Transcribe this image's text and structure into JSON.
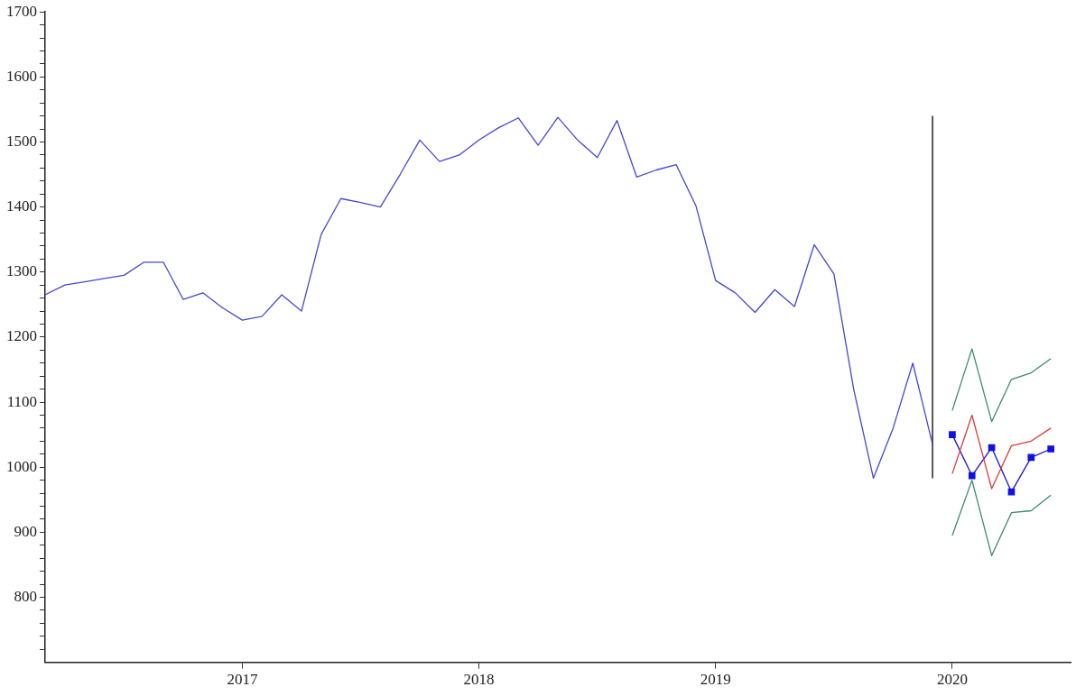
{
  "chart_data": {
    "type": "line",
    "xlim": [
      "2016-03",
      "2020-07"
    ],
    "xticks": [
      "2017",
      "2018",
      "2019",
      "2020"
    ],
    "ylim": [
      700,
      1700
    ],
    "yticks": [
      {
        "value": 720,
        "label": null
      },
      {
        "value": 740,
        "label": null
      },
      {
        "value": 760,
        "label": null
      },
      {
        "value": 780,
        "label": null
      },
      800,
      {
        "value": 820,
        "label": null
      },
      {
        "value": 840,
        "label": null
      },
      {
        "value": 860,
        "label": null
      },
      {
        "value": 880,
        "label": null
      },
      900,
      {
        "value": 920,
        "label": null
      },
      {
        "value": 940,
        "label": null
      },
      {
        "value": 960,
        "label": null
      },
      {
        "value": 980,
        "label": null
      },
      1000,
      {
        "value": 1020,
        "label": null
      },
      {
        "value": 1040,
        "label": null
      },
      {
        "value": 1060,
        "label": null
      },
      {
        "value": 1080,
        "label": null
      },
      1100,
      {
        "value": 1120,
        "label": null
      },
      {
        "value": 1140,
        "label": null
      },
      {
        "value": 1160,
        "label": null
      },
      {
        "value": 1180,
        "label": null
      },
      1200,
      {
        "value": 1220,
        "label": null
      },
      {
        "value": 1240,
        "label": null
      },
      {
        "value": 1260,
        "label": null
      },
      {
        "value": 1280,
        "label": null
      },
      1300,
      {
        "value": 1320,
        "label": null
      },
      {
        "value": 1340,
        "label": null
      },
      {
        "value": 1360,
        "label": null
      },
      {
        "value": 1380,
        "label": null
      },
      1400,
      {
        "value": 1420,
        "label": null
      },
      {
        "value": 1440,
        "label": null
      },
      {
        "value": 1460,
        "label": null
      },
      {
        "value": 1480,
        "label": null
      },
      1500,
      {
        "value": 1520,
        "label": null
      },
      {
        "value": 1540,
        "label": null
      },
      {
        "value": 1560,
        "label": null
      },
      {
        "value": 1580,
        "label": null
      },
      1600,
      {
        "value": 1620,
        "label": null
      },
      {
        "value": 1640,
        "label": null
      },
      {
        "value": 1660,
        "label": null
      },
      {
        "value": 1680,
        "label": null
      },
      1700
    ],
    "grid": false,
    "legend": false,
    "line_style": "solid",
    "series": [
      {
        "color": "#4646d8",
        "marker": "none",
        "x": [
          "2016-03",
          "2016-04",
          "2016-05",
          "2016-06",
          "2016-07",
          "2016-08",
          "2016-09",
          "2016-10",
          "2016-11",
          "2016-12",
          "2017-01",
          "2017-02",
          "2017-03",
          "2017-04",
          "2017-05",
          "2017-06",
          "2017-07",
          "2017-08",
          "2017-09",
          "2017-10",
          "2017-11",
          "2017-12",
          "2018-01",
          "2018-02",
          "2018-03",
          "2018-04",
          "2018-05",
          "2018-06",
          "2018-07",
          "2018-08",
          "2018-09",
          "2018-10",
          "2018-11",
          "2018-12",
          "2019-01",
          "2019-02",
          "2019-03",
          "2019-04",
          "2019-05",
          "2019-06",
          "2019-07",
          "2019-08",
          "2019-09",
          "2019-10",
          "2019-11",
          "2019-12"
        ],
        "values": [
          1265,
          1280,
          1285,
          1290,
          1295,
          1315,
          1315,
          1258,
          1268,
          1245,
          1226,
          1232,
          1265,
          1240,
          1358,
          1413,
          1407,
          1400,
          1450,
          1503,
          1470,
          1480,
          1503,
          1522,
          1537,
          1495,
          1538,
          1503,
          1476,
          1533,
          1446,
          1457,
          1465,
          1402,
          1287,
          1268,
          1238,
          1273,
          1247,
          1342,
          1297,
          1120,
          983,
          1060,
          1160,
          1035
        ]
      },
      {
        "color": "#000000",
        "marker": "none",
        "x": [
          "2019-12",
          "2019-12"
        ],
        "values": [
          983,
          1540
        ]
      },
      {
        "color": "#3a8a70",
        "marker": "none",
        "x": [
          "2020-01",
          "2020-02",
          "2020-03",
          "2020-04",
          "2020-05",
          "2020-06"
        ],
        "values": [
          1087,
          1182,
          1070,
          1135,
          1145,
          1167
        ]
      },
      {
        "color": "#3a8a70",
        "marker": "none",
        "x": [
          "2020-01",
          "2020-02",
          "2020-03",
          "2020-04",
          "2020-05",
          "2020-06"
        ],
        "values": [
          895,
          980,
          864,
          930,
          933,
          957
        ]
      },
      {
        "color": "#e03a3a",
        "marker": "none",
        "x": [
          "2020-01",
          "2020-02",
          "2020-03",
          "2020-04",
          "2020-05",
          "2020-06"
        ],
        "values": [
          990,
          1080,
          967,
          1033,
          1040,
          1060
        ]
      },
      {
        "color": "#1010e0",
        "marker": "square",
        "x": [
          "2020-01",
          "2020-02",
          "2020-03",
          "2020-04",
          "2020-05",
          "2020-06"
        ],
        "values": [
          1050,
          987,
          1030,
          962,
          1015,
          1028
        ]
      }
    ]
  }
}
